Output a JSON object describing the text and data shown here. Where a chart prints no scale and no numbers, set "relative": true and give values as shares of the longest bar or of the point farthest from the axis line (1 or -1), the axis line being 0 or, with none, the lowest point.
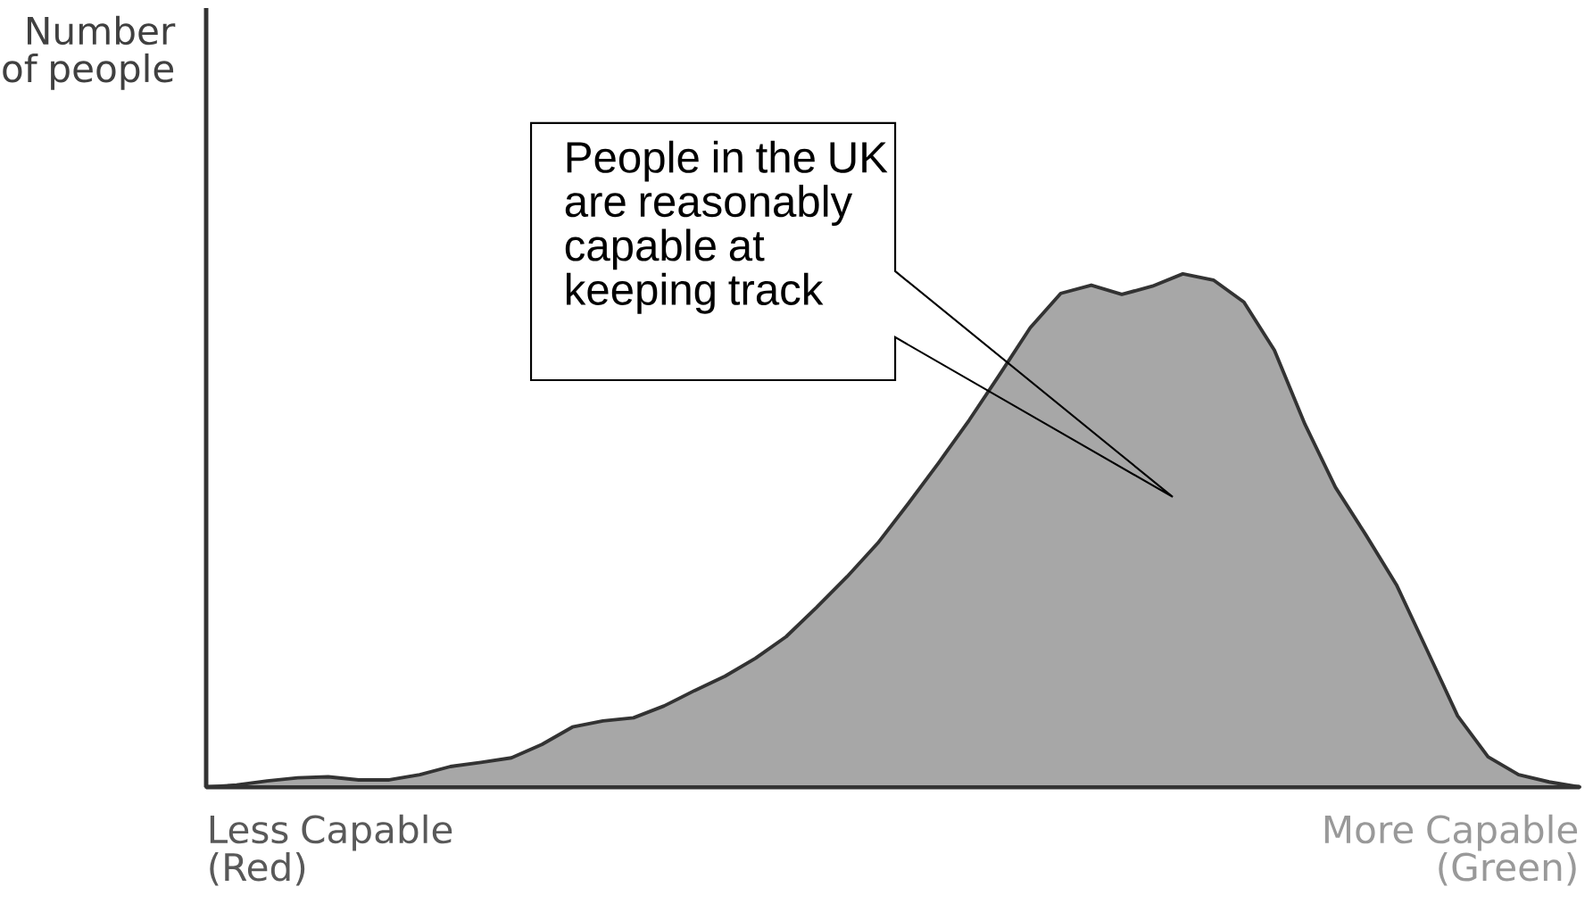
{
  "chart_data": {
    "type": "area",
    "relative": true,
    "ylabel": "Number of people",
    "categories": [
      null,
      null,
      null,
      null,
      null,
      null,
      null,
      null,
      null,
      null,
      null,
      null,
      null,
      null,
      null,
      null,
      null,
      null,
      null,
      null,
      null,
      null,
      null,
      null,
      null,
      null,
      null,
      null,
      null,
      null,
      null,
      null,
      null,
      null,
      null,
      null,
      null,
      null,
      null,
      null,
      null,
      null,
      null,
      null,
      null,
      null
    ],
    "values": [
      0,
      0.004,
      0.012,
      0.018,
      0.02,
      0.014,
      0.014,
      0.024,
      0.04,
      0.048,
      0.057,
      0.083,
      0.117,
      0.129,
      0.135,
      0.158,
      0.188,
      0.216,
      0.251,
      0.293,
      0.35,
      0.41,
      0.475,
      0.552,
      0.632,
      0.715,
      0.804,
      0.895,
      0.962,
      0.978,
      0.96,
      0.976,
      1.0,
      0.988,
      0.945,
      0.851,
      0.707,
      0.584,
      0.491,
      0.394,
      0.267,
      0.139,
      0.059,
      0.024,
      0.01,
      0
    ],
    "color": "#333333",
    "annotations": [
      "People in the UK are reasonably capable at keeping track",
      "Less Capable (Red)",
      "More Capable (Green)"
    ]
  }
}
